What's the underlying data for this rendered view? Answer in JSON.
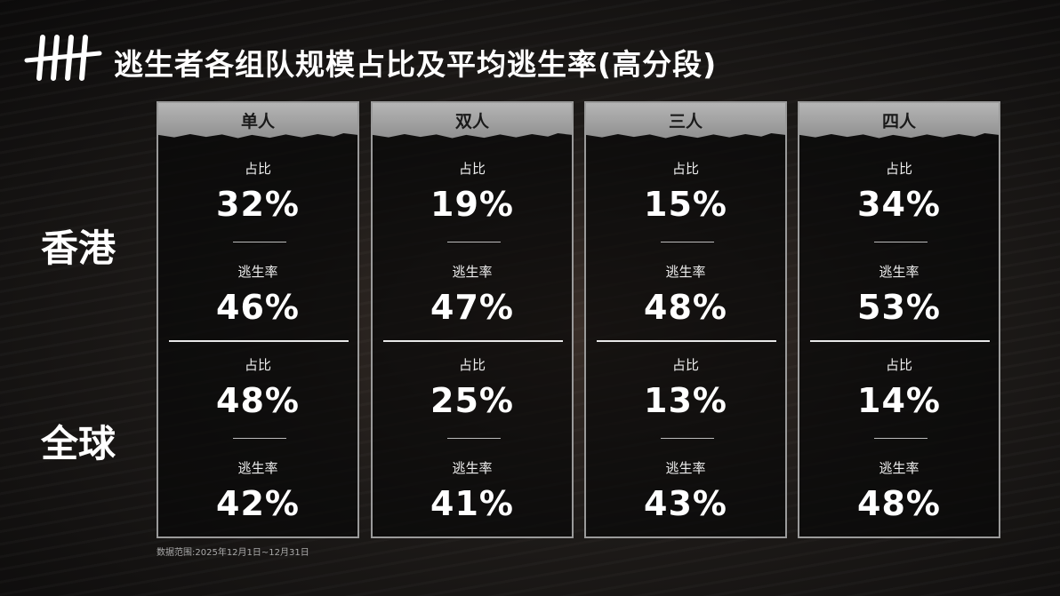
{
  "title": "逃生者各组队规模占比及平均逃生率(高分段)",
  "logo": {
    "icon": "tally-marks-logo"
  },
  "regions": [
    "香港",
    "全球"
  ],
  "metric_labels": {
    "share": "占比",
    "escape": "逃生率"
  },
  "columns": [
    {
      "label": "单人",
      "hk_share": "32%",
      "hk_escape": "46%",
      "global_share": "48%",
      "global_escape": "42%"
    },
    {
      "label": "双人",
      "hk_share": "19%",
      "hk_escape": "47%",
      "global_share": "25%",
      "global_escape": "41%"
    },
    {
      "label": "三人",
      "hk_share": "15%",
      "hk_escape": "48%",
      "global_share": "13%",
      "global_escape": "43%"
    },
    {
      "label": "四人",
      "hk_share": "34%",
      "hk_escape": "53%",
      "global_share": "14%",
      "global_escape": "48%"
    }
  ],
  "footnote": "数据范围:2025年12月1日~12月31日"
}
